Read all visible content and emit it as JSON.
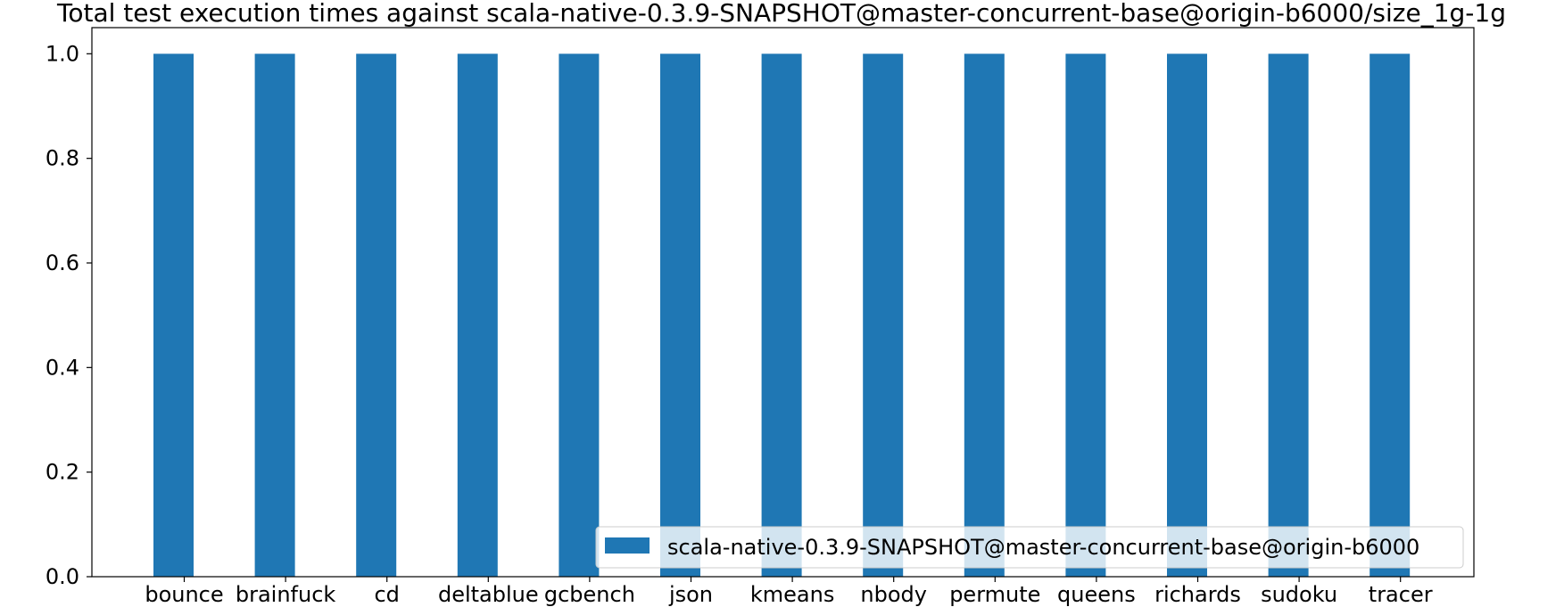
{
  "chart_data": {
    "type": "bar",
    "title": "Total test execution times against scala-native-0.3.9-SNAPSHOT@master-concurrent-base@origin-b6000/size_1g-1g",
    "xlabel": "",
    "ylabel": "",
    "categories": [
      "bounce",
      "brainfuck",
      "cd",
      "deltablue",
      "gcbench",
      "json",
      "kmeans",
      "nbody",
      "permute",
      "queens",
      "richards",
      "sudoku",
      "tracer"
    ],
    "series": [
      {
        "name": "scala-native-0.3.9-SNAPSHOT@master-concurrent-base@origin-b6000",
        "values": [
          1.0,
          1.0,
          1.0,
          1.0,
          1.0,
          1.0,
          1.0,
          1.0,
          1.0,
          1.0,
          1.0,
          1.0,
          1.0
        ],
        "color": "#1f77b4"
      }
    ],
    "ylim": [
      0,
      1.05
    ],
    "yticks": [
      "0.0",
      "0.2",
      "0.4",
      "0.6",
      "0.8",
      "1.0"
    ],
    "grid": false,
    "legend_position": "lower-right"
  }
}
